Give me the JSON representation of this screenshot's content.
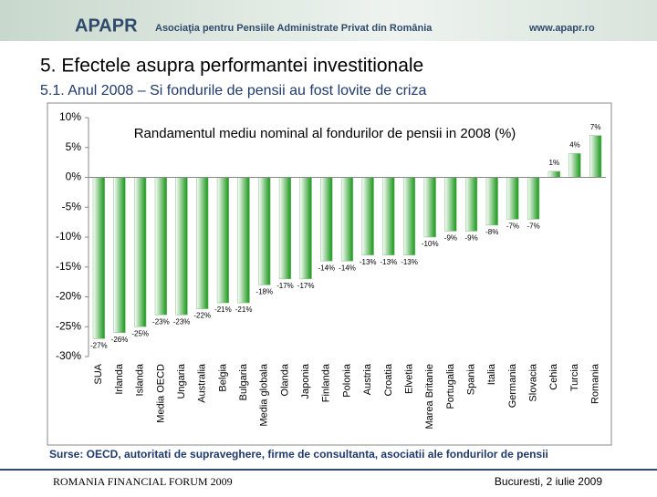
{
  "header": {
    "logo": "APAPR",
    "org": "Asociaţia pentru Pensiile Administrate Privat din România",
    "url": "www.apapr.ro"
  },
  "slide": {
    "title": "5. Efectele asupra performantei investitionale",
    "subtitle": "5.1. Anul 2008 – Si fondurile de pensii au fost lovite de criza",
    "source": "Surse: OECD, autoritati de supraveghere, firme de consultanta, asociatii ale fondurilor de pensii"
  },
  "footer": {
    "left": "ROMANIA FINANCIAL FORUM 2009",
    "right": "Bucuresti, 2 iulie 2009"
  },
  "chart_data": {
    "type": "bar",
    "title": "Randamentul mediu nominal al fondurilor de pensii in 2008 (%)",
    "categories": [
      "SUA",
      "Irlanda",
      "Islanda",
      "Media OECD",
      "Ungaria",
      "Australia",
      "Belgia",
      "Bulgaria",
      "Media globala",
      "Olanda",
      "Japonia",
      "Finlanda",
      "Polonia",
      "Austria",
      "Croatia",
      "Elvetia",
      "Marea Britanie",
      "Portugalia",
      "Spania",
      "Italia",
      "Germania",
      "Slovacia",
      "Cehia",
      "Turcia",
      "Romania"
    ],
    "values": [
      -27,
      -26,
      -25,
      -23,
      -23,
      -22,
      -21,
      -21,
      -18,
      -17,
      -17,
      -14,
      -14,
      -13,
      -13,
      -13,
      -10,
      -9,
      -9,
      -8,
      -7,
      -7,
      1,
      4,
      7
    ],
    "value_labels": [
      "-27%",
      "-26%",
      "-25%",
      "-23%",
      "-23%",
      "-22%",
      "-21%",
      "-21%",
      "-18%",
      "-17%",
      "-17%",
      "-14%",
      "-14%",
      "-13%",
      "-13%",
      "-13%",
      "-10%",
      "-9%",
      "-9%",
      "-8%",
      "-7%",
      "-7%",
      "1%",
      "4%",
      "7%"
    ],
    "color": "#2ca02c",
    "ylim": [
      -30,
      10
    ],
    "yticks": [
      {
        "value": 10,
        "label": "10%"
      },
      {
        "value": 5,
        "label": "5%"
      },
      {
        "value": 0,
        "label": "0%"
      },
      {
        "value": -5,
        "label": "-5%"
      },
      {
        "value": -10,
        "label": "-10%"
      },
      {
        "value": -15,
        "label": "-15%"
      },
      {
        "value": -20,
        "label": "-20%"
      },
      {
        "value": -25,
        "label": "-25%"
      },
      {
        "value": -30,
        "label": "-30%"
      }
    ],
    "grid": false
  }
}
